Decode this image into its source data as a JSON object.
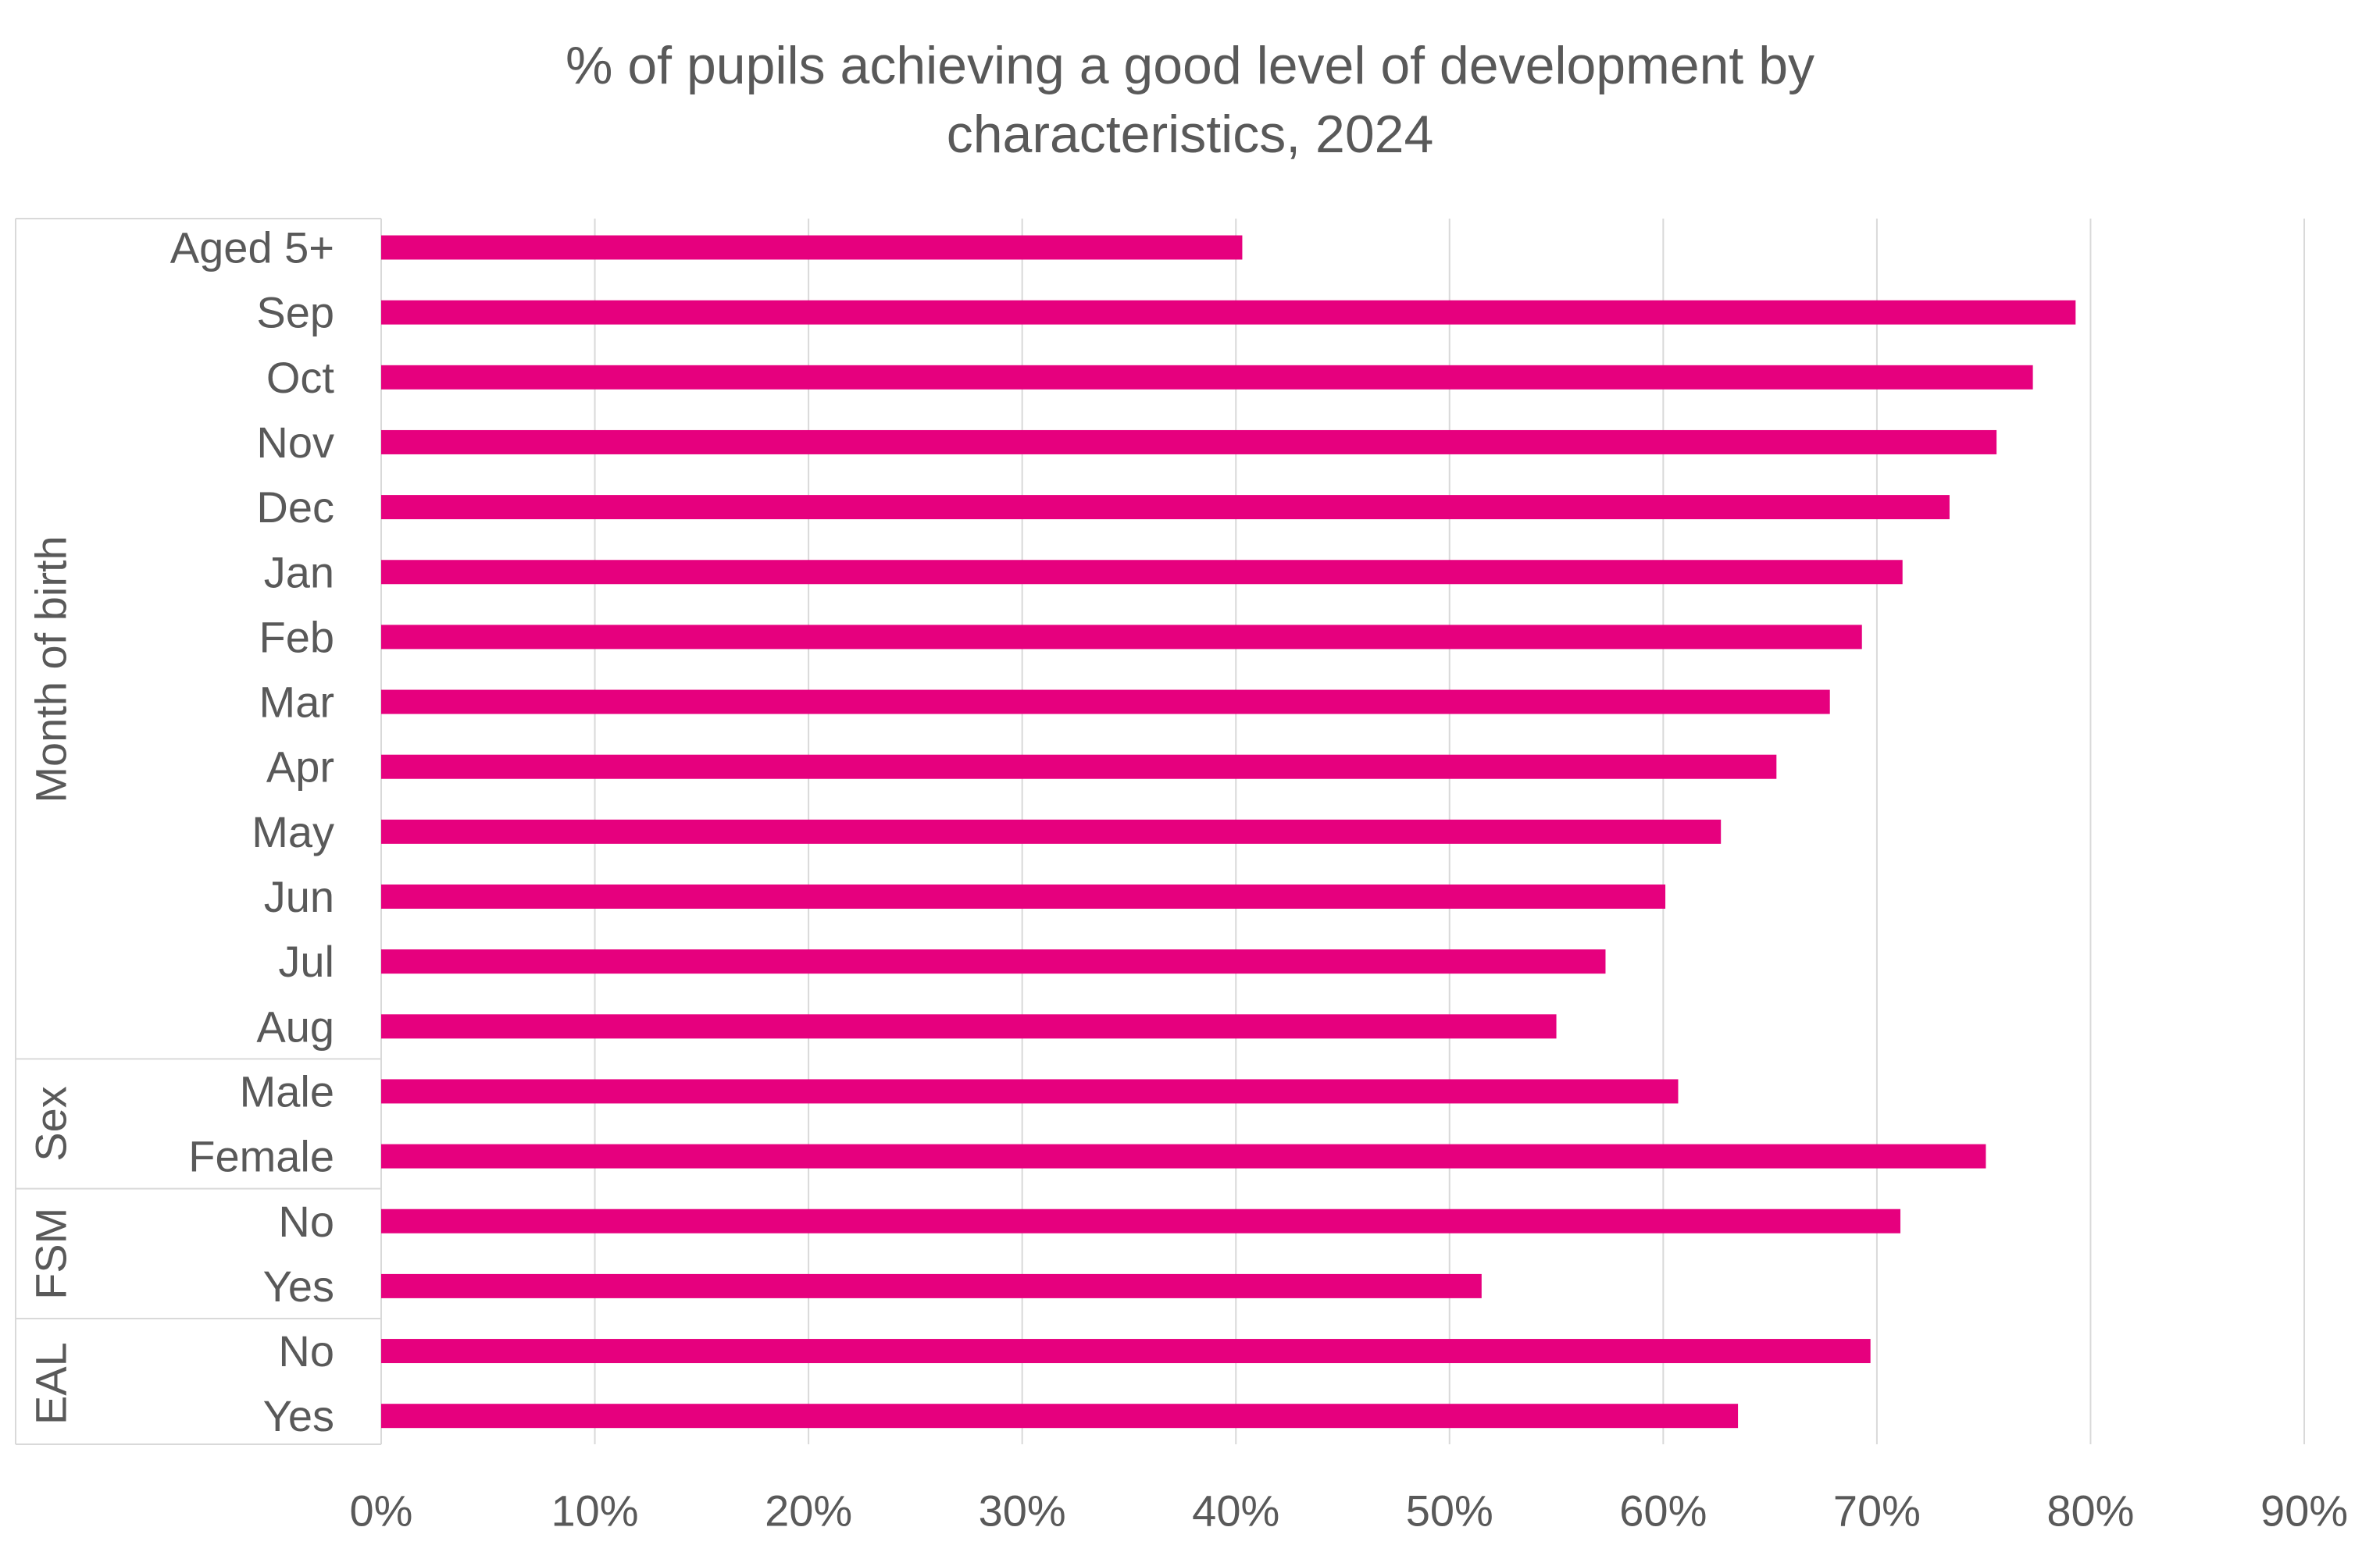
{
  "chart_data": {
    "type": "bar",
    "orientation": "horizontal",
    "title_lines": [
      "% of pupils achieving a good level of development by",
      "characteristics, 2024"
    ],
    "groups": [
      {
        "name": "",
        "categories": [
          "Aged 5+"
        ]
      },
      {
        "name": "Month of birth",
        "categories": [
          "Sep",
          "Oct",
          "Nov",
          "Dec",
          "Jan",
          "Feb",
          "Mar",
          "Apr",
          "May",
          "Jun",
          "Jul",
          "Aug"
        ]
      },
      {
        "name": "Sex",
        "categories": [
          "Male",
          "Female"
        ]
      },
      {
        "name": "FSM",
        "categories": [
          "No",
          "Yes"
        ]
      },
      {
        "name": "EAL",
        "categories": [
          "No",
          "Yes"
        ]
      }
    ],
    "categories": [
      "Aged 5+",
      "Sep",
      "Oct",
      "Nov",
      "Dec",
      "Jan",
      "Feb",
      "Mar",
      "Apr",
      "May",
      "Jun",
      "Jul",
      "Aug",
      "Male",
      "Female",
      "No",
      "Yes",
      "No",
      "Yes"
    ],
    "values": [
      40.3,
      79.3,
      77.3,
      75.6,
      73.4,
      71.2,
      69.3,
      67.8,
      65.3,
      62.7,
      60.1,
      57.3,
      55.0,
      60.7,
      75.1,
      71.1,
      51.5,
      69.7,
      63.5
    ],
    "xlim": [
      0,
      90
    ],
    "xticks": [
      0,
      10,
      20,
      30,
      40,
      50,
      60,
      70,
      80,
      90
    ],
    "xtick_labels": [
      "0%",
      "10%",
      "20%",
      "30%",
      "40%",
      "50%",
      "60%",
      "70%",
      "80%",
      "90%"
    ],
    "bar_color": "#E6007E",
    "grid": true,
    "legend": "none"
  }
}
